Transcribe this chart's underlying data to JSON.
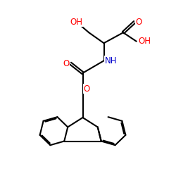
{
  "bg": "#ffffff",
  "bond_color": "#000000",
  "lw": 1.5,
  "O_color": "#ff0000",
  "N_color": "#0000cc",
  "fs": 8.5,
  "xlim": [
    0,
    10
  ],
  "ylim": [
    0,
    10
  ]
}
